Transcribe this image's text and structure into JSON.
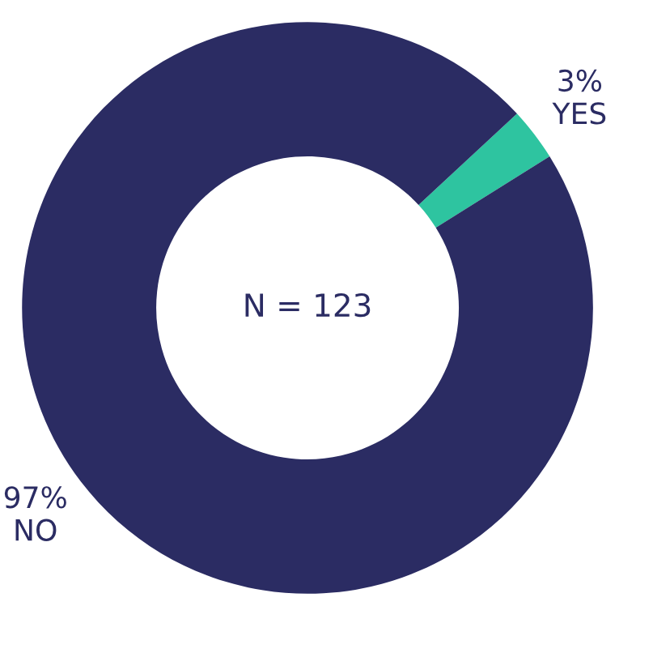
{
  "chart_data": {
    "type": "donut",
    "categories": [
      "YES",
      "NO"
    ],
    "values": [
      3,
      97
    ],
    "value_labels": [
      "3%",
      "97%"
    ],
    "colors": [
      "#2ec4a0",
      "#2b2c63"
    ],
    "annotations": [
      "N = 123"
    ]
  }
}
